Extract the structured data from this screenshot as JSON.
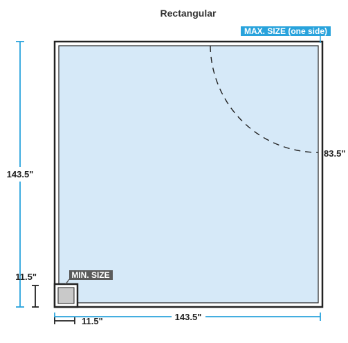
{
  "title": "Rectangular",
  "labels": {
    "max_size": "MAX. SIZE (one side)",
    "min_size": "MIN. SIZE",
    "height": "143.5\"",
    "width": "143.5\"",
    "radius": "83.5\"",
    "min_height": "11.5\"",
    "min_width": "11.5\""
  },
  "colors": {
    "glass_fill": "#d6e9f8",
    "frame": "#222222",
    "dimension_line": "#29a3dc",
    "max_badge": "#29a3dc",
    "min_badge": "#5b5b5b",
    "min_square_fill": "#c9c9c9"
  }
}
